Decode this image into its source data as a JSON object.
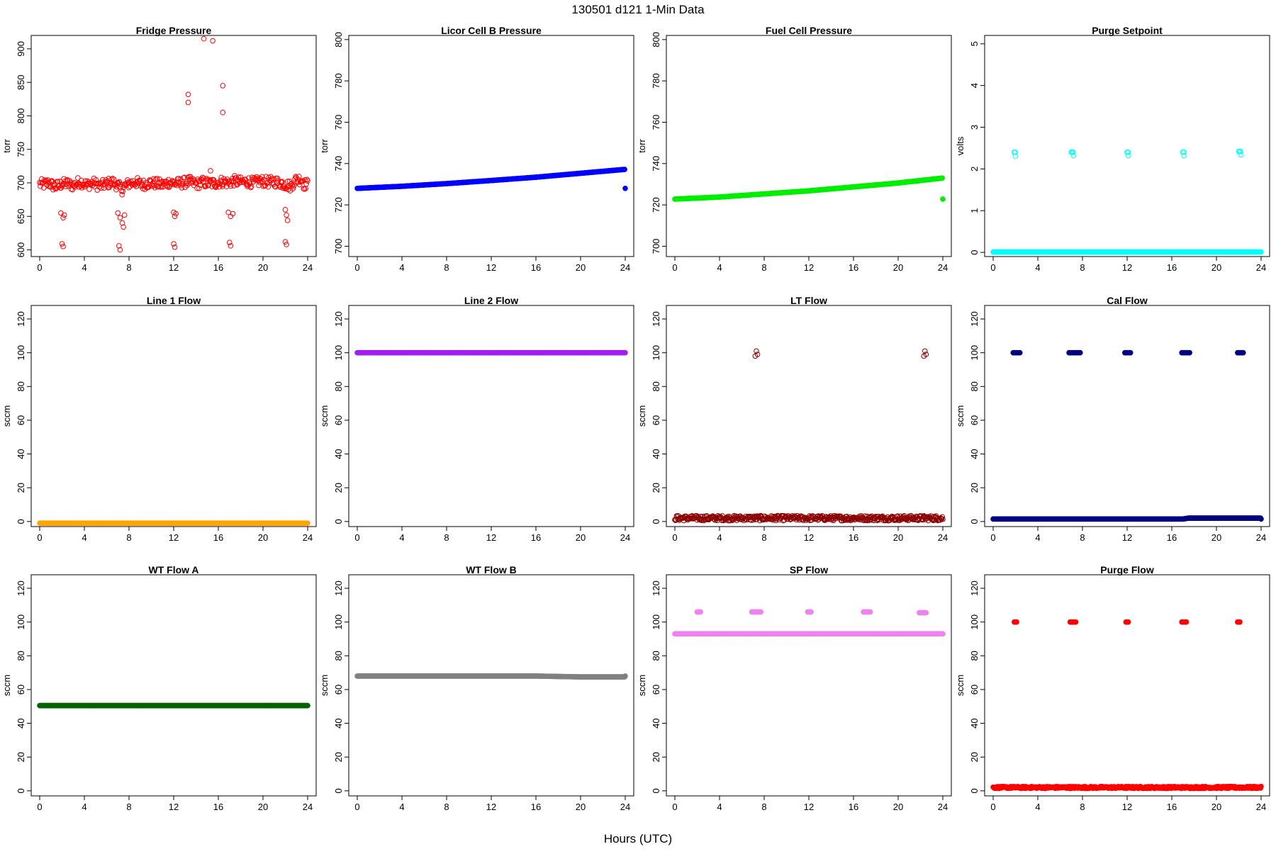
{
  "figure": {
    "main_title": "130501    d121    1-Min Data",
    "x_caption": "Hours (UTC)"
  },
  "chart_data": [
    {
      "type": "scatter",
      "title": "Fridge Pressure",
      "ylabel": "torr",
      "xlim": [
        0,
        24
      ],
      "ylim": [
        590,
        920
      ],
      "x_ticks": [
        0,
        4,
        8,
        12,
        16,
        20,
        24
      ],
      "y_ticks": [
        600,
        650,
        700,
        750,
        800,
        850,
        900
      ],
      "color": "#ff0000",
      "marker": "open-circle",
      "series": [
        {
          "points": [
            [
              0.2,
              697
            ],
            [
              0.8,
              700
            ],
            [
              1.4,
              694
            ],
            [
              1.9,
              698
            ],
            [
              2.4,
              699
            ],
            [
              3.0,
              696
            ],
            [
              3.6,
              702
            ],
            [
              4.2,
              697
            ],
            [
              4.8,
              700
            ],
            [
              5.4,
              695
            ],
            [
              6.0,
              699
            ],
            [
              6.6,
              701
            ],
            [
              7.4,
              690
            ],
            [
              7.6,
              695
            ],
            [
              8.0,
              699
            ],
            [
              8.6,
              701
            ],
            [
              9.2,
              697
            ],
            [
              9.8,
              700
            ],
            [
              10.4,
              699
            ],
            [
              11.0,
              697
            ],
            [
              11.6,
              701
            ],
            [
              12.2,
              699
            ],
            [
              12.8,
              700
            ],
            [
              13.4,
              702
            ],
            [
              14.0,
              698
            ],
            [
              14.6,
              701
            ],
            [
              15.2,
              699
            ],
            [
              15.8,
              700
            ],
            [
              16.4,
              702
            ],
            [
              16.9,
              700
            ],
            [
              17.4,
              703
            ],
            [
              18.0,
              701
            ],
            [
              18.6,
              702
            ],
            [
              19.2,
              700
            ],
            [
              19.8,
              703
            ],
            [
              20.4,
              701
            ],
            [
              21.0,
              702
            ],
            [
              21.6,
              700
            ],
            [
              22.5,
              695
            ],
            [
              23.0,
              706
            ],
            [
              23.6,
              704
            ],
            [
              1.9,
              655
            ],
            [
              2.1,
              648
            ],
            [
              2.2,
              652
            ],
            [
              2.0,
              609
            ],
            [
              2.1,
              605
            ],
            [
              7.0,
              655
            ],
            [
              7.2,
              648
            ],
            [
              7.4,
              640
            ],
            [
              7.5,
              634
            ],
            [
              7.6,
              652
            ],
            [
              7.1,
              606
            ],
            [
              7.2,
              600
            ],
            [
              12.0,
              656
            ],
            [
              12.1,
              650
            ],
            [
              12.2,
              654
            ],
            [
              12.0,
              609
            ],
            [
              12.1,
              604
            ],
            [
              16.9,
              656
            ],
            [
              17.1,
              650
            ],
            [
              17.3,
              654
            ],
            [
              17.0,
              611
            ],
            [
              17.1,
              606
            ],
            [
              22.0,
              660
            ],
            [
              22.1,
              652
            ],
            [
              22.2,
              644
            ],
            [
              22.0,
              612
            ],
            [
              22.1,
              608
            ],
            [
              13.3,
              832
            ],
            [
              13.3,
              820
            ],
            [
              14.7,
              915
            ],
            [
              15.5,
              912
            ],
            [
              16.4,
              845
            ],
            [
              16.4,
              805
            ],
            [
              15.3,
              718
            ]
          ]
        }
      ]
    },
    {
      "type": "scatter",
      "title": "Licor Cell B Pressure",
      "ylabel": "torr",
      "xlim": [
        0,
        24
      ],
      "ylim": [
        695,
        802
      ],
      "x_ticks": [
        0,
        4,
        8,
        12,
        16,
        20,
        24
      ],
      "y_ticks": [
        700,
        720,
        740,
        760,
        780,
        800
      ],
      "color": "#0000ff",
      "marker": "filled-circle",
      "series": [
        {
          "points": [
            [
              0,
              728.0
            ],
            [
              4,
              729.0
            ],
            [
              8,
              730.3
            ],
            [
              12,
              731.8
            ],
            [
              16,
              733.4
            ],
            [
              20,
              735.3
            ],
            [
              24,
              737.2
            ]
          ]
        }
      ]
    },
    {
      "type": "scatter",
      "title": "Fuel Cell Pressure",
      "ylabel": "torr",
      "xlim": [
        0,
        24
      ],
      "ylim": [
        695,
        802
      ],
      "x_ticks": [
        0,
        4,
        8,
        12,
        16,
        20,
        24
      ],
      "y_ticks": [
        700,
        720,
        740,
        760,
        780,
        800
      ],
      "color": "#00ee00",
      "marker": "filled-circle",
      "series": [
        {
          "points": [
            [
              0,
              722.8
            ],
            [
              4,
              723.8
            ],
            [
              8,
              725.3
            ],
            [
              12,
              726.8
            ],
            [
              16,
              728.7
            ],
            [
              20,
              730.6
            ],
            [
              24,
              733.0
            ]
          ]
        }
      ]
    },
    {
      "type": "scatter",
      "title": "Purge Setpoint",
      "ylabel": "volts",
      "xlim": [
        0,
        24
      ],
      "ylim": [
        -0.1,
        5.2
      ],
      "x_ticks": [
        0,
        4,
        8,
        12,
        16,
        20,
        24
      ],
      "y_ticks": [
        0,
        1,
        2,
        3,
        4,
        5
      ],
      "color": "#00ffff",
      "marker": "open-circle",
      "series": [
        {
          "points": [
            [
              0,
              0.01
            ],
            [
              24,
              0.01
            ],
            [
              1.9,
              2.4
            ],
            [
              2.0,
              2.3
            ],
            [
              7.0,
              2.4
            ],
            [
              7.2,
              2.32
            ],
            [
              12.0,
              2.4
            ],
            [
              12.1,
              2.32
            ],
            [
              17.0,
              2.4
            ],
            [
              17.1,
              2.32
            ],
            [
              22.0,
              2.42
            ],
            [
              22.2,
              2.34
            ]
          ]
        }
      ]
    },
    {
      "type": "scatter",
      "title": "Line 1 Flow",
      "ylabel": "sccm",
      "xlim": [
        0,
        24
      ],
      "ylim": [
        -3,
        128
      ],
      "x_ticks": [
        0,
        4,
        8,
        12,
        16,
        20,
        24
      ],
      "y_ticks": [
        0,
        20,
        40,
        60,
        80,
        100,
        120
      ],
      "color": "#ffa500",
      "marker": "filled-circle",
      "series": [
        {
          "points": [
            [
              0,
              -1
            ],
            [
              24,
              -1
            ]
          ]
        }
      ]
    },
    {
      "type": "scatter",
      "title": "Line 2 Flow",
      "ylabel": "sccm",
      "xlim": [
        0,
        24
      ],
      "ylim": [
        -3,
        128
      ],
      "x_ticks": [
        0,
        4,
        8,
        12,
        16,
        20,
        24
      ],
      "y_ticks": [
        0,
        20,
        40,
        60,
        80,
        100,
        120
      ],
      "color": "#a020f0",
      "marker": "filled-circle",
      "series": [
        {
          "points": [
            [
              0,
              100
            ],
            [
              24,
              100
            ]
          ]
        }
      ]
    },
    {
      "type": "scatter",
      "title": "LT Flow",
      "ylabel": "sccm",
      "xlim": [
        0,
        24
      ],
      "ylim": [
        -3,
        128
      ],
      "x_ticks": [
        0,
        4,
        8,
        12,
        16,
        20,
        24
      ],
      "y_ticks": [
        0,
        20,
        40,
        60,
        80,
        100,
        120
      ],
      "color": "#8b0000",
      "marker": "open-circle",
      "series": [
        {
          "points": [
            [
              0,
              2
            ],
            [
              24,
              2
            ],
            [
              7.2,
              98
            ],
            [
              7.3,
              101
            ],
            [
              7.4,
              99
            ],
            [
              22.3,
              98
            ],
            [
              22.4,
              101
            ],
            [
              22.5,
              99
            ]
          ]
        }
      ]
    },
    {
      "type": "scatter",
      "title": "Cal Flow",
      "ylabel": "sccm",
      "xlim": [
        0,
        24
      ],
      "ylim": [
        -3,
        128
      ],
      "x_ticks": [
        0,
        4,
        8,
        12,
        16,
        20,
        24
      ],
      "y_ticks": [
        0,
        20,
        40,
        60,
        80,
        100,
        120
      ],
      "color": "#000080",
      "marker": "filled-circle",
      "series": [
        {
          "points": [
            [
              0,
              1.5
            ],
            [
              17,
              1.5
            ],
            [
              17.5,
              2
            ],
            [
              24,
              2
            ],
            [
              1.8,
              100
            ],
            [
              2.4,
              100
            ],
            [
              6.8,
              100
            ],
            [
              7.8,
              100
            ],
            [
              11.8,
              100
            ],
            [
              12.3,
              100
            ],
            [
              16.9,
              100
            ],
            [
              17.6,
              100
            ],
            [
              21.9,
              100
            ],
            [
              22.4,
              100
            ]
          ]
        }
      ]
    },
    {
      "type": "scatter",
      "title": "WT Flow A",
      "ylabel": "sccm",
      "xlim": [
        0,
        24
      ],
      "ylim": [
        -3,
        128
      ],
      "x_ticks": [
        0,
        4,
        8,
        12,
        16,
        20,
        24
      ],
      "y_ticks": [
        0,
        20,
        40,
        60,
        80,
        100,
        120
      ],
      "color": "#006400",
      "marker": "filled-circle",
      "series": [
        {
          "points": [
            [
              0,
              50.5
            ],
            [
              24,
              50.5
            ]
          ]
        }
      ]
    },
    {
      "type": "scatter",
      "title": "WT Flow B",
      "ylabel": "sccm",
      "xlim": [
        0,
        24
      ],
      "ylim": [
        -3,
        128
      ],
      "x_ticks": [
        0,
        4,
        8,
        12,
        16,
        20,
        24
      ],
      "y_ticks": [
        0,
        20,
        40,
        60,
        80,
        100,
        120
      ],
      "color": "#808080",
      "marker": "filled-circle",
      "series": [
        {
          "points": [
            [
              0,
              68
            ],
            [
              16,
              68
            ],
            [
              20,
              67.5
            ],
            [
              24,
              67.5
            ]
          ]
        }
      ]
    },
    {
      "type": "scatter",
      "title": "SP Flow",
      "ylabel": "sccm",
      "xlim": [
        0,
        24
      ],
      "ylim": [
        -3,
        128
      ],
      "x_ticks": [
        0,
        4,
        8,
        12,
        16,
        20,
        24
      ],
      "y_ticks": [
        0,
        20,
        40,
        60,
        80,
        100,
        120
      ],
      "color": "#ee82ee",
      "marker": "filled-circle",
      "series": [
        {
          "points": [
            [
              0,
              93
            ],
            [
              24,
              93
            ],
            [
              2.0,
              106
            ],
            [
              2.3,
              106
            ],
            [
              6.9,
              106
            ],
            [
              7.7,
              106
            ],
            [
              11.9,
              106
            ],
            [
              12.2,
              106
            ],
            [
              16.9,
              106
            ],
            [
              17.5,
              106
            ],
            [
              21.9,
              105.5
            ],
            [
              22.5,
              105.5
            ]
          ]
        }
      ]
    },
    {
      "type": "scatter",
      "title": "Purge Flow",
      "ylabel": "sccm",
      "xlim": [
        0,
        24
      ],
      "ylim": [
        -3,
        128
      ],
      "x_ticks": [
        0,
        4,
        8,
        12,
        16,
        20,
        24
      ],
      "y_ticks": [
        0,
        20,
        40,
        60,
        80,
        100,
        120
      ],
      "color": "#ff0000",
      "marker": "filled-circle",
      "series": [
        {
          "points": [
            [
              0,
              2
            ],
            [
              24,
              2
            ],
            [
              1.9,
              100
            ],
            [
              2.1,
              100
            ],
            [
              6.9,
              100
            ],
            [
              7.4,
              100
            ],
            [
              11.9,
              100
            ],
            [
              12.1,
              100
            ],
            [
              16.9,
              100
            ],
            [
              17.3,
              100
            ],
            [
              21.9,
              100
            ],
            [
              22.1,
              100
            ]
          ]
        }
      ]
    }
  ]
}
